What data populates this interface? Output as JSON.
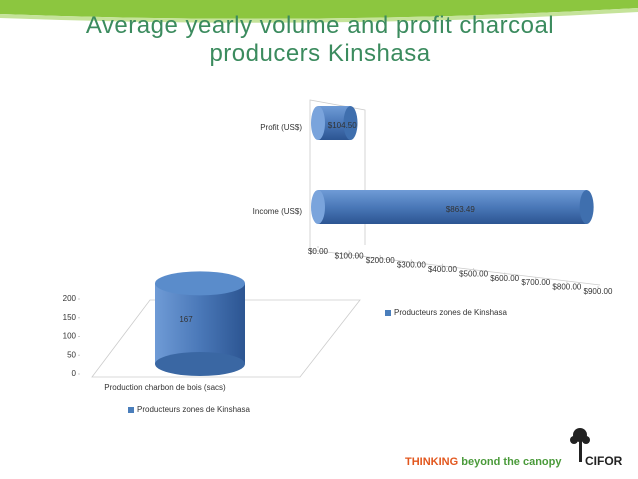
{
  "title": "Average yearly volume and profit charcoal producers Kinshasa",
  "chart_data": [
    {
      "type": "bar",
      "orientation": "horizontal",
      "categories": [
        "Profit (US$)",
        "Income (US$)"
      ],
      "series": [
        {
          "name": "Producteurs zones de Kinshasa",
          "color": "#4a7ebb",
          "values": [
            104.5,
            863.49
          ],
          "value_labels": [
            "$104.50",
            "$863.49"
          ]
        }
      ],
      "xlim": [
        0,
        900
      ],
      "xticks": [
        {
          "value": 0,
          "label": "$0.00"
        },
        {
          "value": 100,
          "label": "$100.00"
        },
        {
          "value": 200,
          "label": "$200.00"
        },
        {
          "value": 300,
          "label": "$300.00"
        },
        {
          "value": 400,
          "label": "$400.00"
        },
        {
          "value": 500,
          "label": "$500.00"
        },
        {
          "value": 600,
          "label": "$600.00"
        },
        {
          "value": 700,
          "label": "$700.00"
        },
        {
          "value": 800,
          "label": "$800.00"
        },
        {
          "value": 900,
          "label": "$900.00"
        }
      ],
      "legend": "right"
    },
    {
      "type": "bar",
      "orientation": "vertical",
      "categories": [
        "Production charbon de bois (sacs)"
      ],
      "series": [
        {
          "name": "Producteurs zones de Kinshasa",
          "color": "#4a7ebb",
          "values": [
            167
          ]
        }
      ],
      "ylim": [
        0,
        200
      ],
      "yticks": [
        0,
        50,
        100,
        150,
        200
      ],
      "legend": "bottom"
    }
  ],
  "footer": {
    "emphasis": "THINKING",
    "text": "beyond the canopy",
    "logo": "CIFOR"
  }
}
